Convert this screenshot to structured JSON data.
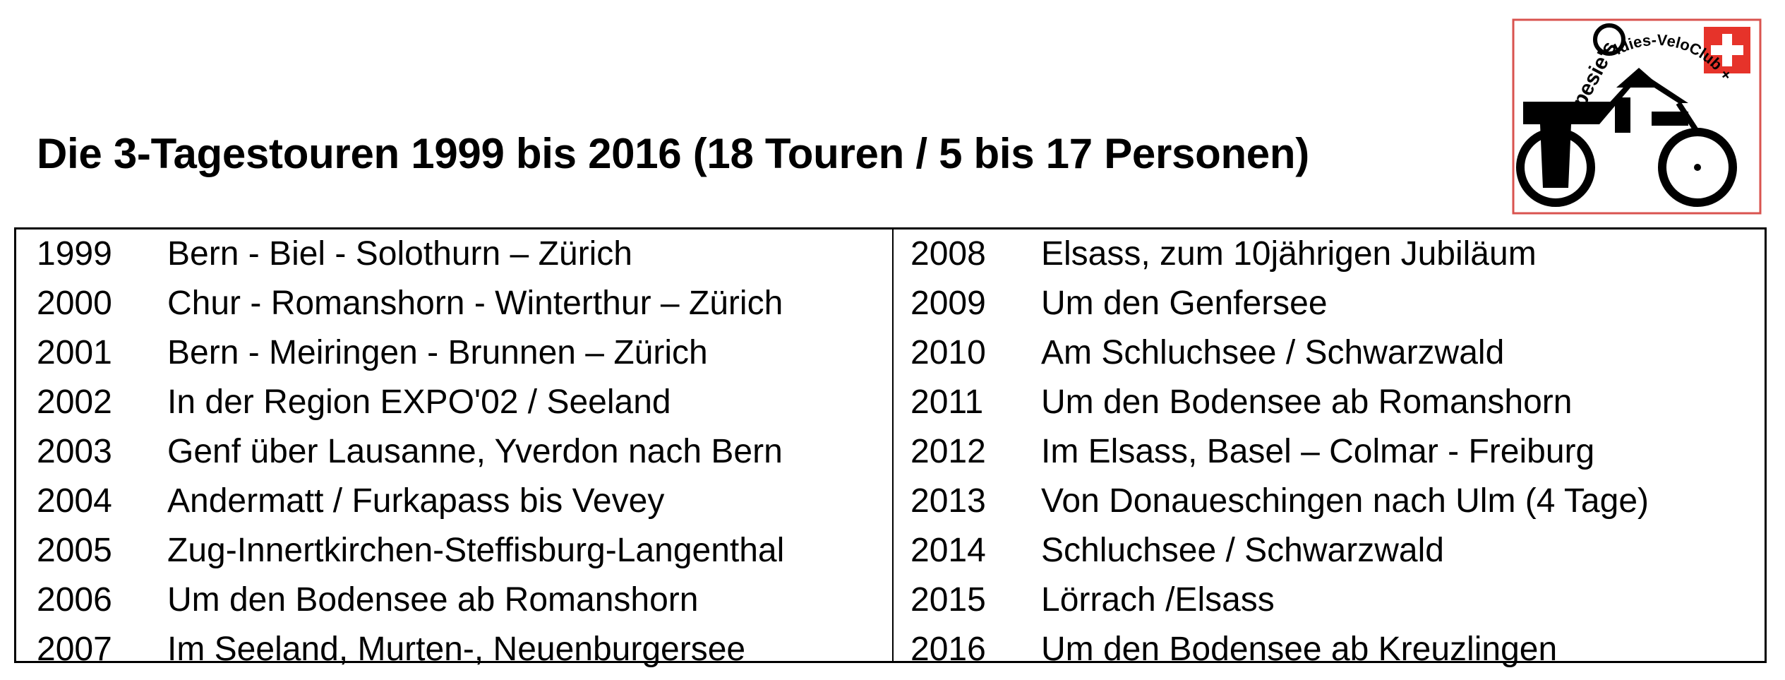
{
  "title": "Die 3-Tagestouren 1999 bis 2016 (18 Touren / 5 bis 17 Personen)",
  "logo": {
    "text": "pesie's Oldies-VeloClub",
    "swiss_cross_color": "#e6332a",
    "border_color": "#d9534f"
  },
  "tours_left": [
    {
      "year": "1999",
      "text": "Bern - Biel - Solothurn – Zürich"
    },
    {
      "year": "2000",
      "text": "Chur - Romanshorn - Winterthur – Zürich"
    },
    {
      "year": "2001",
      "text": "Bern - Meiringen - Brunnen – Zürich"
    },
    {
      "year": "2002",
      "text": "In der Region EXPO'02 / Seeland"
    },
    {
      "year": "2003",
      "text": "Genf über Lausanne, Yverdon nach Bern"
    },
    {
      "year": "2004",
      "text": "Andermatt / Furkapass bis Vevey"
    },
    {
      "year": "2005",
      "text": "Zug-Innertkirchen-Steffisburg-Langenthal"
    },
    {
      "year": "2006",
      "text": "Um den Bodensee ab Romanshorn"
    },
    {
      "year": "2007",
      "text": "Im Seeland, Murten-, Neuenburgersee"
    }
  ],
  "tours_right": [
    {
      "year": "2008",
      "text": "Elsass, zum 10jährigen Jubiläum"
    },
    {
      "year": "2009",
      "text": "Um den Genfersee"
    },
    {
      "year": "2010",
      "text": "Am Schluchsee / Schwarzwald"
    },
    {
      "year": "2011",
      "text": "Um den Bodensee ab Romanshorn"
    },
    {
      "year": "2012",
      "text": "Im Elsass, Basel – Colmar - Freiburg"
    },
    {
      "year": "2013",
      "text": "Von Donaueschingen nach Ulm (4 Tage)"
    },
    {
      "year": "2014",
      "text": "Schluchsee / Schwarzwald"
    },
    {
      "year": "2015",
      "text": "Lörrach /Elsass"
    },
    {
      "year": "2016",
      "text": "Um den Bodensee ab Kreuzlingen"
    }
  ]
}
